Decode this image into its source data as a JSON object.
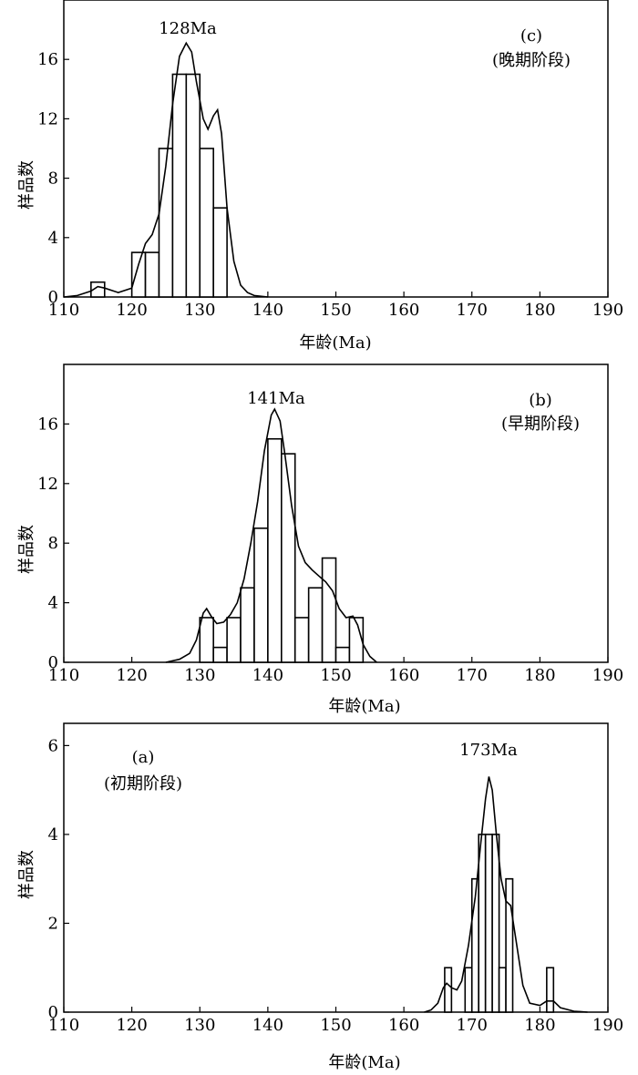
{
  "chart_data": [
    {
      "type": "histogram",
      "panel": "c",
      "label": "(c)",
      "stage": "(晚期阶段)",
      "peak_label": "128Ma",
      "xlabel": "年龄(Ma)",
      "ylabel": "样品数",
      "xlim": [
        110,
        190
      ],
      "ylim": [
        0,
        20
      ],
      "xticks": [
        110,
        120,
        130,
        140,
        150,
        160,
        170,
        180,
        190
      ],
      "yticks": [
        0,
        4,
        8,
        12,
        16
      ],
      "bins": [
        {
          "x0": 114,
          "x1": 116,
          "count": 1
        },
        {
          "x0": 120,
          "x1": 122,
          "count": 3
        },
        {
          "x0": 122,
          "x1": 124,
          "count": 3
        },
        {
          "x0": 124,
          "x1": 126,
          "count": 10
        },
        {
          "x0": 126,
          "x1": 128,
          "count": 15
        },
        {
          "x0": 128,
          "x1": 130,
          "count": 15
        },
        {
          "x0": 130,
          "x1": 132,
          "count": 10
        },
        {
          "x0": 132,
          "x1": 134,
          "count": 6
        }
      ],
      "curve": [
        [
          110,
          0
        ],
        [
          112,
          0.1
        ],
        [
          114,
          0.4
        ],
        [
          115,
          0.7
        ],
        [
          116,
          0.6
        ],
        [
          118,
          0.3
        ],
        [
          120,
          0.6
        ],
        [
          121,
          2.2
        ],
        [
          122,
          3.6
        ],
        [
          123,
          4.2
        ],
        [
          124,
          5.6
        ],
        [
          125,
          8.8
        ],
        [
          126,
          13.0
        ],
        [
          127,
          16.2
        ],
        [
          128,
          17.1
        ],
        [
          128.8,
          16.5
        ],
        [
          129.5,
          14.5
        ],
        [
          130.5,
          12.0
        ],
        [
          131.2,
          11.3
        ],
        [
          132,
          12.2
        ],
        [
          132.6,
          12.6
        ],
        [
          133.2,
          11.0
        ],
        [
          134,
          6.0
        ],
        [
          135,
          2.4
        ],
        [
          136,
          0.8
        ],
        [
          137,
          0.3
        ],
        [
          138,
          0.1
        ],
        [
          140,
          0
        ]
      ]
    },
    {
      "type": "histogram",
      "panel": "b",
      "label": "(b)",
      "stage": "(早期阶段)",
      "peak_label": "141Ma",
      "xlabel": "年龄(Ma)",
      "ylabel": "样品数",
      "xlim": [
        110,
        190
      ],
      "ylim": [
        0,
        20
      ],
      "xticks": [
        110,
        120,
        130,
        140,
        150,
        160,
        170,
        180,
        190
      ],
      "yticks": [
        0,
        4,
        8,
        12,
        16
      ],
      "bins": [
        {
          "x0": 130,
          "x1": 132,
          "count": 3
        },
        {
          "x0": 132,
          "x1": 134,
          "count": 1
        },
        {
          "x0": 134,
          "x1": 136,
          "count": 3
        },
        {
          "x0": 136,
          "x1": 138,
          "count": 5
        },
        {
          "x0": 138,
          "x1": 140,
          "count": 9
        },
        {
          "x0": 140,
          "x1": 142,
          "count": 15
        },
        {
          "x0": 142,
          "x1": 144,
          "count": 14
        },
        {
          "x0": 144,
          "x1": 146,
          "count": 3
        },
        {
          "x0": 146,
          "x1": 148,
          "count": 5
        },
        {
          "x0": 148,
          "x1": 150,
          "count": 7
        },
        {
          "x0": 150,
          "x1": 152,
          "count": 1
        },
        {
          "x0": 152,
          "x1": 154,
          "count": 3
        }
      ],
      "curve": [
        [
          125,
          0
        ],
        [
          127,
          0.2
        ],
        [
          128.5,
          0.6
        ],
        [
          129.5,
          1.5
        ],
        [
          130.5,
          3.3
        ],
        [
          131,
          3.6
        ],
        [
          131.8,
          3.0
        ],
        [
          132.5,
          2.6
        ],
        [
          133.5,
          2.7
        ],
        [
          134.5,
          3.2
        ],
        [
          135.5,
          4.0
        ],
        [
          136.5,
          5.6
        ],
        [
          137.5,
          8.0
        ],
        [
          138.5,
          10.8
        ],
        [
          139.5,
          14.2
        ],
        [
          140.5,
          16.6
        ],
        [
          141,
          17.0
        ],
        [
          141.8,
          16.2
        ],
        [
          142.5,
          14.0
        ],
        [
          143.5,
          10.5
        ],
        [
          144.5,
          7.8
        ],
        [
          145.5,
          6.7
        ],
        [
          146.5,
          6.2
        ],
        [
          147.5,
          5.8
        ],
        [
          148.5,
          5.4
        ],
        [
          149.5,
          4.8
        ],
        [
          150.5,
          3.6
        ],
        [
          151.5,
          3.0
        ],
        [
          152.5,
          3.1
        ],
        [
          153.2,
          2.5
        ],
        [
          154,
          1.2
        ],
        [
          155,
          0.4
        ],
        [
          156,
          0
        ]
      ]
    },
    {
      "type": "histogram",
      "panel": "a",
      "label": "(a)",
      "stage": "(初期阶段)",
      "peak_label": "173Ma",
      "xlabel": "年龄(Ma)",
      "ylabel": "样品数",
      "xlim": [
        110,
        190
      ],
      "ylim": [
        0,
        6.5
      ],
      "xticks": [
        110,
        120,
        130,
        140,
        150,
        160,
        170,
        180,
        190
      ],
      "yticks": [
        0,
        2,
        4,
        6
      ],
      "bins": [
        {
          "x0": 166,
          "x1": 167,
          "count": 1
        },
        {
          "x0": 167,
          "x1": 168,
          "count": 0
        },
        {
          "x0": 168,
          "x1": 169,
          "count": 0
        },
        {
          "x0": 169,
          "x1": 170,
          "count": 1
        },
        {
          "x0": 170,
          "x1": 171,
          "count": 3
        },
        {
          "x0": 171,
          "x1": 172,
          "count": 4
        },
        {
          "x0": 172,
          "x1": 173,
          "count": 4
        },
        {
          "x0": 173,
          "x1": 174,
          "count": 4
        },
        {
          "x0": 174,
          "x1": 175,
          "count": 1
        },
        {
          "x0": 175,
          "x1": 176,
          "count": 3
        },
        {
          "x0": 181,
          "x1": 182,
          "count": 1
        }
      ],
      "curve": [
        [
          163,
          0
        ],
        [
          164,
          0.05
        ],
        [
          165,
          0.2
        ],
        [
          165.8,
          0.55
        ],
        [
          166.3,
          0.65
        ],
        [
          167,
          0.55
        ],
        [
          167.8,
          0.5
        ],
        [
          168.5,
          0.7
        ],
        [
          169.5,
          1.5
        ],
        [
          170.5,
          2.6
        ],
        [
          171.3,
          3.8
        ],
        [
          172,
          4.8
        ],
        [
          172.5,
          5.3
        ],
        [
          173,
          5.0
        ],
        [
          173.6,
          4.0
        ],
        [
          174.3,
          3.0
        ],
        [
          175,
          2.5
        ],
        [
          175.7,
          2.4
        ],
        [
          176.5,
          1.6
        ],
        [
          177.5,
          0.6
        ],
        [
          178.5,
          0.2
        ],
        [
          180,
          0.15
        ],
        [
          181,
          0.25
        ],
        [
          182,
          0.25
        ],
        [
          183,
          0.1
        ],
        [
          185,
          0.02
        ],
        [
          187,
          0
        ]
      ]
    }
  ]
}
